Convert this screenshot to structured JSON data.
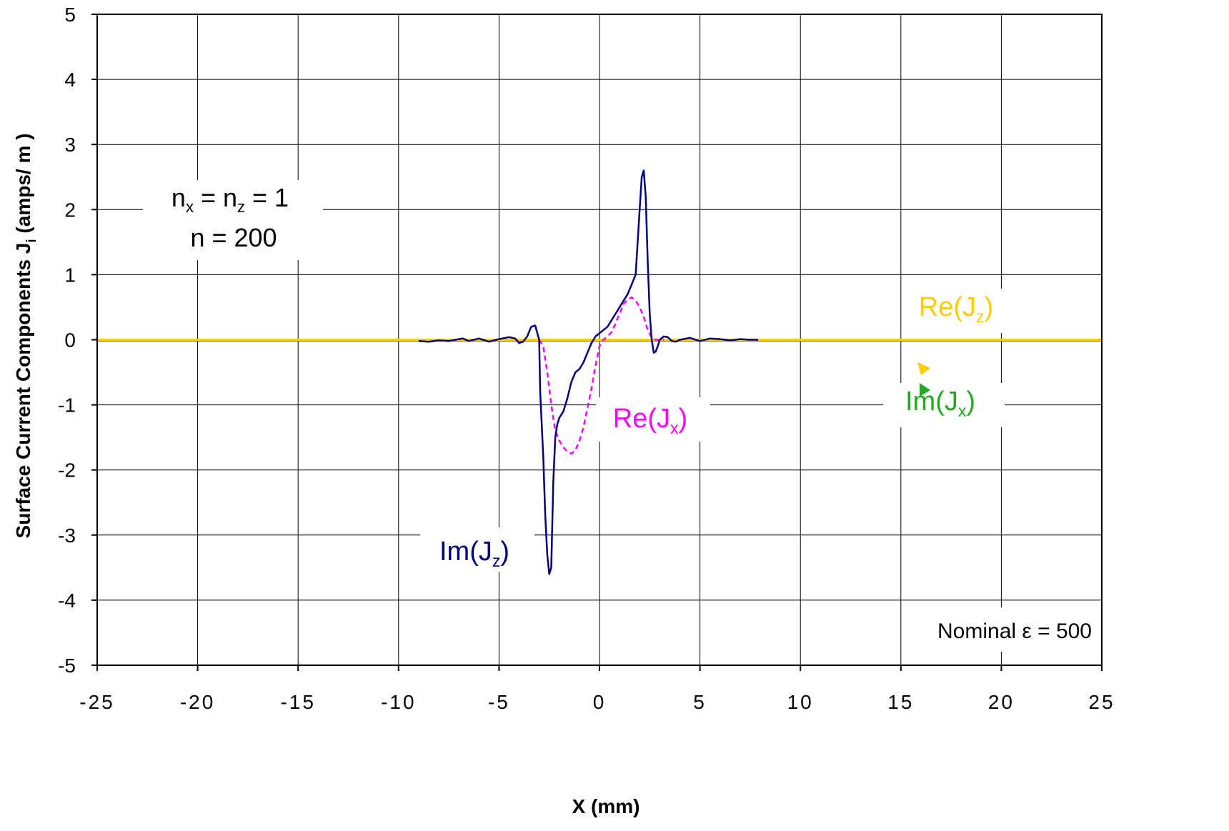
{
  "chart_data": {
    "type": "line",
    "xlabel": "X  (mm)",
    "ylabel_main": "Surface Current Components J",
    "ylabel_sub": "i",
    "ylabel_tail": " (amps/ m )",
    "xlim": [
      -25,
      25
    ],
    "ylim": [
      -5,
      5
    ],
    "x_ticks": [
      -25,
      -20,
      -15,
      -10,
      -5,
      0,
      5,
      10,
      15,
      20,
      25
    ],
    "y_ticks": [
      -5,
      -4,
      -3,
      -2,
      -1,
      0,
      1,
      2,
      3,
      4,
      5
    ],
    "grid": true,
    "colors": {
      "im_jz": "#000080",
      "re_jx": "#ff00ff",
      "re_jz": "#ffcc00",
      "im_jx": "#22aa22",
      "grid": "#000000"
    },
    "series": [
      {
        "key": "im_jz",
        "x": [
          -9.0,
          -8.5,
          -8.0,
          -7.5,
          -7.0,
          -6.8,
          -6.5,
          -6.0,
          -5.5,
          -5.0,
          -4.5,
          -4.2,
          -4.0,
          -3.8,
          -3.6,
          -3.4,
          -3.2,
          -3.0,
          -2.95,
          -2.8,
          -2.7,
          -2.6,
          -2.5,
          -2.4,
          -2.3,
          -2.2,
          -2.1,
          -2.0,
          -1.9,
          -1.8,
          -1.6,
          -1.4,
          -1.2,
          -1.0,
          -0.8,
          -0.6,
          -0.4,
          -0.2,
          0.0,
          0.2,
          0.4,
          0.6,
          0.8,
          1.0,
          1.2,
          1.4,
          1.6,
          1.8,
          2.0,
          2.1,
          2.2,
          2.3,
          2.4,
          2.5,
          2.6,
          2.7,
          2.8,
          2.9,
          3.0,
          3.2,
          3.4,
          3.6,
          3.8,
          4.0,
          4.5,
          5.0,
          5.5,
          6.0,
          6.5,
          7.0,
          7.5,
          7.9
        ],
        "y": [
          -0.02,
          -0.03,
          -0.01,
          -0.02,
          0.01,
          0.02,
          -0.02,
          0.02,
          -0.03,
          0.01,
          0.04,
          0.02,
          -0.05,
          -0.03,
          0.05,
          0.2,
          0.22,
          0.0,
          -0.8,
          -1.8,
          -2.7,
          -3.3,
          -3.6,
          -3.5,
          -2.2,
          -1.5,
          -1.3,
          -1.2,
          -1.15,
          -1.1,
          -0.9,
          -0.65,
          -0.5,
          -0.45,
          -0.35,
          -0.2,
          -0.05,
          0.05,
          0.1,
          0.15,
          0.2,
          0.3,
          0.4,
          0.5,
          0.6,
          0.7,
          0.85,
          1.0,
          2.0,
          2.5,
          2.6,
          2.2,
          1.2,
          0.4,
          0.0,
          -0.2,
          -0.18,
          -0.1,
          0.0,
          0.05,
          0.04,
          -0.02,
          -0.03,
          0.0,
          0.03,
          -0.02,
          0.02,
          0.01,
          -0.01,
          0.01,
          0.0,
          0.0
        ]
      },
      {
        "key": "re_jx",
        "x": [
          -3.0,
          -2.8,
          -2.6,
          -2.4,
          -2.2,
          -2.0,
          -1.8,
          -1.6,
          -1.4,
          -1.2,
          -1.0,
          -0.8,
          -0.6,
          -0.4,
          -0.2,
          0.0,
          0.2,
          0.4,
          0.6,
          0.8,
          1.0,
          1.2,
          1.4,
          1.6,
          1.8,
          2.0,
          2.2,
          2.4,
          2.6,
          2.8,
          3.0,
          3.2
        ],
        "y": [
          0.0,
          -0.1,
          -0.5,
          -1.0,
          -1.4,
          -1.55,
          -1.65,
          -1.72,
          -1.75,
          -1.7,
          -1.55,
          -1.35,
          -1.05,
          -0.75,
          -0.4,
          -0.1,
          0.0,
          0.05,
          0.12,
          0.25,
          0.4,
          0.55,
          0.62,
          0.65,
          0.6,
          0.5,
          0.35,
          0.15,
          0.03,
          0.0,
          0.0,
          0.0
        ]
      },
      {
        "key": "re_jz",
        "x": [
          -25,
          25
        ],
        "y": [
          0.0,
          0.0
        ]
      },
      {
        "key": "im_jx",
        "x": [
          -25,
          25
        ],
        "y": [
          -0.02,
          -0.02
        ]
      }
    ],
    "annotations": {
      "n_line1": {
        "n": "n",
        "x_sub": "x",
        "eq": " = n",
        "z_sub": "z",
        "tail": " = 1"
      },
      "n_line2": "n  = 200",
      "im_jz": {
        "pre": "Im(J",
        "sub": "z",
        "post": ")"
      },
      "re_jx": {
        "pre": "Re(J",
        "sub": "x",
        "post": ")"
      },
      "re_jz": {
        "pre": "Re(J",
        "sub": "z",
        "post": ")"
      },
      "im_jx": {
        "pre": "Im(J",
        "sub": "x",
        "post": ")"
      },
      "nominal_eps": "Nominal ε  = 500"
    }
  }
}
